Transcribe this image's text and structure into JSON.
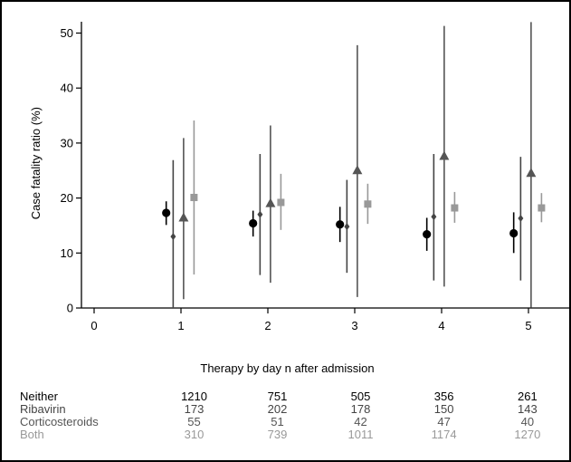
{
  "chart_data": {
    "type": "scatter",
    "ylabel": "Case fatality ratio (%)",
    "xlabel": "Therapy by day n after admission",
    "xlim": [
      0,
      5.4
    ],
    "ylim": [
      0,
      52
    ],
    "x_ticks": [
      0,
      1,
      2,
      3,
      4,
      5
    ],
    "y_ticks": [
      0,
      10,
      20,
      30,
      40,
      50
    ],
    "grid": false,
    "legend": "none",
    "categories": [
      1,
      2,
      3,
      4,
      5
    ],
    "series": [
      {
        "name": "Neither",
        "marker": "circle",
        "color": "#000000",
        "values": [
          17.3,
          15.4,
          15.2,
          13.4,
          13.6
        ],
        "lower": [
          15.1,
          13.0,
          12.0,
          10.4,
          10.0
        ],
        "upper": [
          19.4,
          17.7,
          18.4,
          16.4,
          17.4
        ]
      },
      {
        "name": "Ribavirin",
        "marker": "diamond",
        "color": "#444444",
        "values": [
          13.0,
          17.0,
          14.8,
          16.6,
          16.3
        ],
        "lower": [
          0,
          6.0,
          6.4,
          5.0,
          5.0
        ],
        "upper": [
          26.9,
          28.0,
          23.3,
          28.0,
          27.5
        ]
      },
      {
        "name": "Corticosteroids",
        "marker": "triangle",
        "color": "#555555",
        "values": [
          16.4,
          19.0,
          25.0,
          27.6,
          24.5
        ],
        "lower": [
          1.6,
          4.6,
          2.0,
          3.9,
          0.1
        ],
        "upper": [
          30.9,
          33.2,
          47.8,
          51.3,
          52.0
        ]
      },
      {
        "name": "Both",
        "marker": "square",
        "color": "#999999",
        "values": [
          20.1,
          19.2,
          18.9,
          18.2,
          18.2
        ],
        "lower": [
          6.1,
          14.2,
          15.3,
          15.5,
          15.6
        ],
        "upper": [
          34.1,
          24.4,
          22.6,
          21.1,
          20.9
        ]
      }
    ]
  },
  "counts_table": {
    "rows": [
      {
        "label": "Neither",
        "color": "#000000",
        "values": [
          "1210",
          "751",
          "505",
          "356",
          "261"
        ]
      },
      {
        "label": "Ribavirin",
        "color": "#444444",
        "values": [
          "173",
          "202",
          "178",
          "150",
          "143"
        ]
      },
      {
        "label": "Corticosteroids",
        "color": "#555555",
        "values": [
          "55",
          "51",
          "42",
          "47",
          "40"
        ]
      },
      {
        "label": "Both",
        "color": "#999999",
        "values": [
          "310",
          "739",
          "1011",
          "1174",
          "1270"
        ]
      }
    ]
  }
}
